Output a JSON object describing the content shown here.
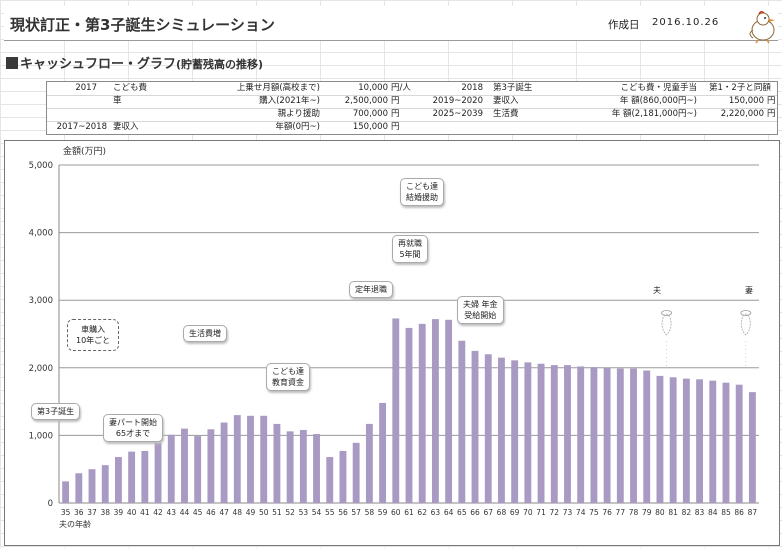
{
  "header": {
    "title": "現状訂正・第3子誕生シミュレーション",
    "date_label": "作成日",
    "date_value": "2016.10.26",
    "mascot_icon": "chick-mascot-icon"
  },
  "section_title": "キャッシュフロー・グラフ",
  "section_subtitle": "(貯蓄残高の推移)",
  "info_rows": [
    [
      "2017",
      "こども費",
      "上乗せ月額(高校まで)",
      "10,000",
      "円/人",
      "2018",
      "第3子誕生",
      "こども費・児童手当",
      "第1・2子と同額"
    ],
    [
      "",
      "車",
      "購入(2021年~)",
      "2,500,000",
      "円",
      "2019~2020",
      "妻収入",
      "年 額(860,000円~)",
      "150,000",
      "円"
    ],
    [
      "",
      "",
      "親より援助",
      "700,000",
      "円",
      "2025~2039",
      "生活費",
      "年 額(2,181,000円~)",
      "2,220,000",
      "円"
    ],
    [
      "2017~2018",
      "妻収入",
      "年額(0円~)",
      "150,000",
      "円"
    ]
  ],
  "chart_data": {
    "type": "bar",
    "ylabel": "金額(万円)",
    "xlabel": "夫の年齢",
    "ylim": [
      0,
      5000
    ],
    "yticks": [
      0,
      1000,
      2000,
      3000,
      4000,
      5000
    ],
    "ytick_labels": [
      "0",
      "1,000",
      "2,000",
      "3,000",
      "4,000",
      "5,000"
    ],
    "grid": true,
    "bar_color": "#a99ac3",
    "categories": [
      "35",
      "36",
      "37",
      "38",
      "39",
      "40",
      "41",
      "42",
      "43",
      "44",
      "45",
      "46",
      "47",
      "48",
      "49",
      "50",
      "51",
      "52",
      "53",
      "54",
      "55",
      "56",
      "57",
      "58",
      "59",
      "60",
      "61",
      "62",
      "63",
      "64",
      "65",
      "66",
      "67",
      "68",
      "69",
      "70",
      "71",
      "72",
      "73",
      "74",
      "75",
      "76",
      "77",
      "78",
      "79",
      "80",
      "81",
      "82",
      "83",
      "84",
      "85",
      "86",
      "87"
    ],
    "values": [
      320,
      440,
      500,
      560,
      680,
      760,
      770,
      890,
      1010,
      1100,
      990,
      1090,
      1190,
      1300,
      1290,
      1290,
      1170,
      1060,
      1080,
      1020,
      680,
      770,
      890,
      1170,
      1480,
      2730,
      2590,
      2650,
      2720,
      2710,
      2400,
      2250,
      2200,
      2150,
      2110,
      2080,
      2060,
      2040,
      2040,
      2020,
      2010,
      2000,
      1990,
      1990,
      1960,
      1880,
      1860,
      1840,
      1830,
      1810,
      1780,
      1750,
      1640
    ],
    "annotations": [
      {
        "key": "third_child",
        "text": [
          "第3子誕生"
        ]
      },
      {
        "key": "wife_parttime",
        "text": [
          "妻パート開始",
          "65才まで"
        ]
      },
      {
        "key": "car",
        "text": [
          "車購入",
          "10年ごと"
        ]
      },
      {
        "key": "living",
        "text": [
          "生活費増"
        ]
      },
      {
        "key": "education",
        "text": [
          "こども達",
          "教育資金"
        ]
      },
      {
        "key": "retire",
        "text": [
          "定年退職"
        ]
      },
      {
        "key": "reemploy",
        "text": [
          "再就職",
          "5年間"
        ]
      },
      {
        "key": "wedding",
        "text": [
          "こども達",
          "結婚援助"
        ]
      },
      {
        "key": "pension",
        "text": [
          "夫婦 年金",
          "受給開始"
        ]
      },
      {
        "key": "husband_death",
        "text": [
          "夫"
        ]
      },
      {
        "key": "wife_death",
        "text": [
          "妻"
        ]
      }
    ]
  }
}
